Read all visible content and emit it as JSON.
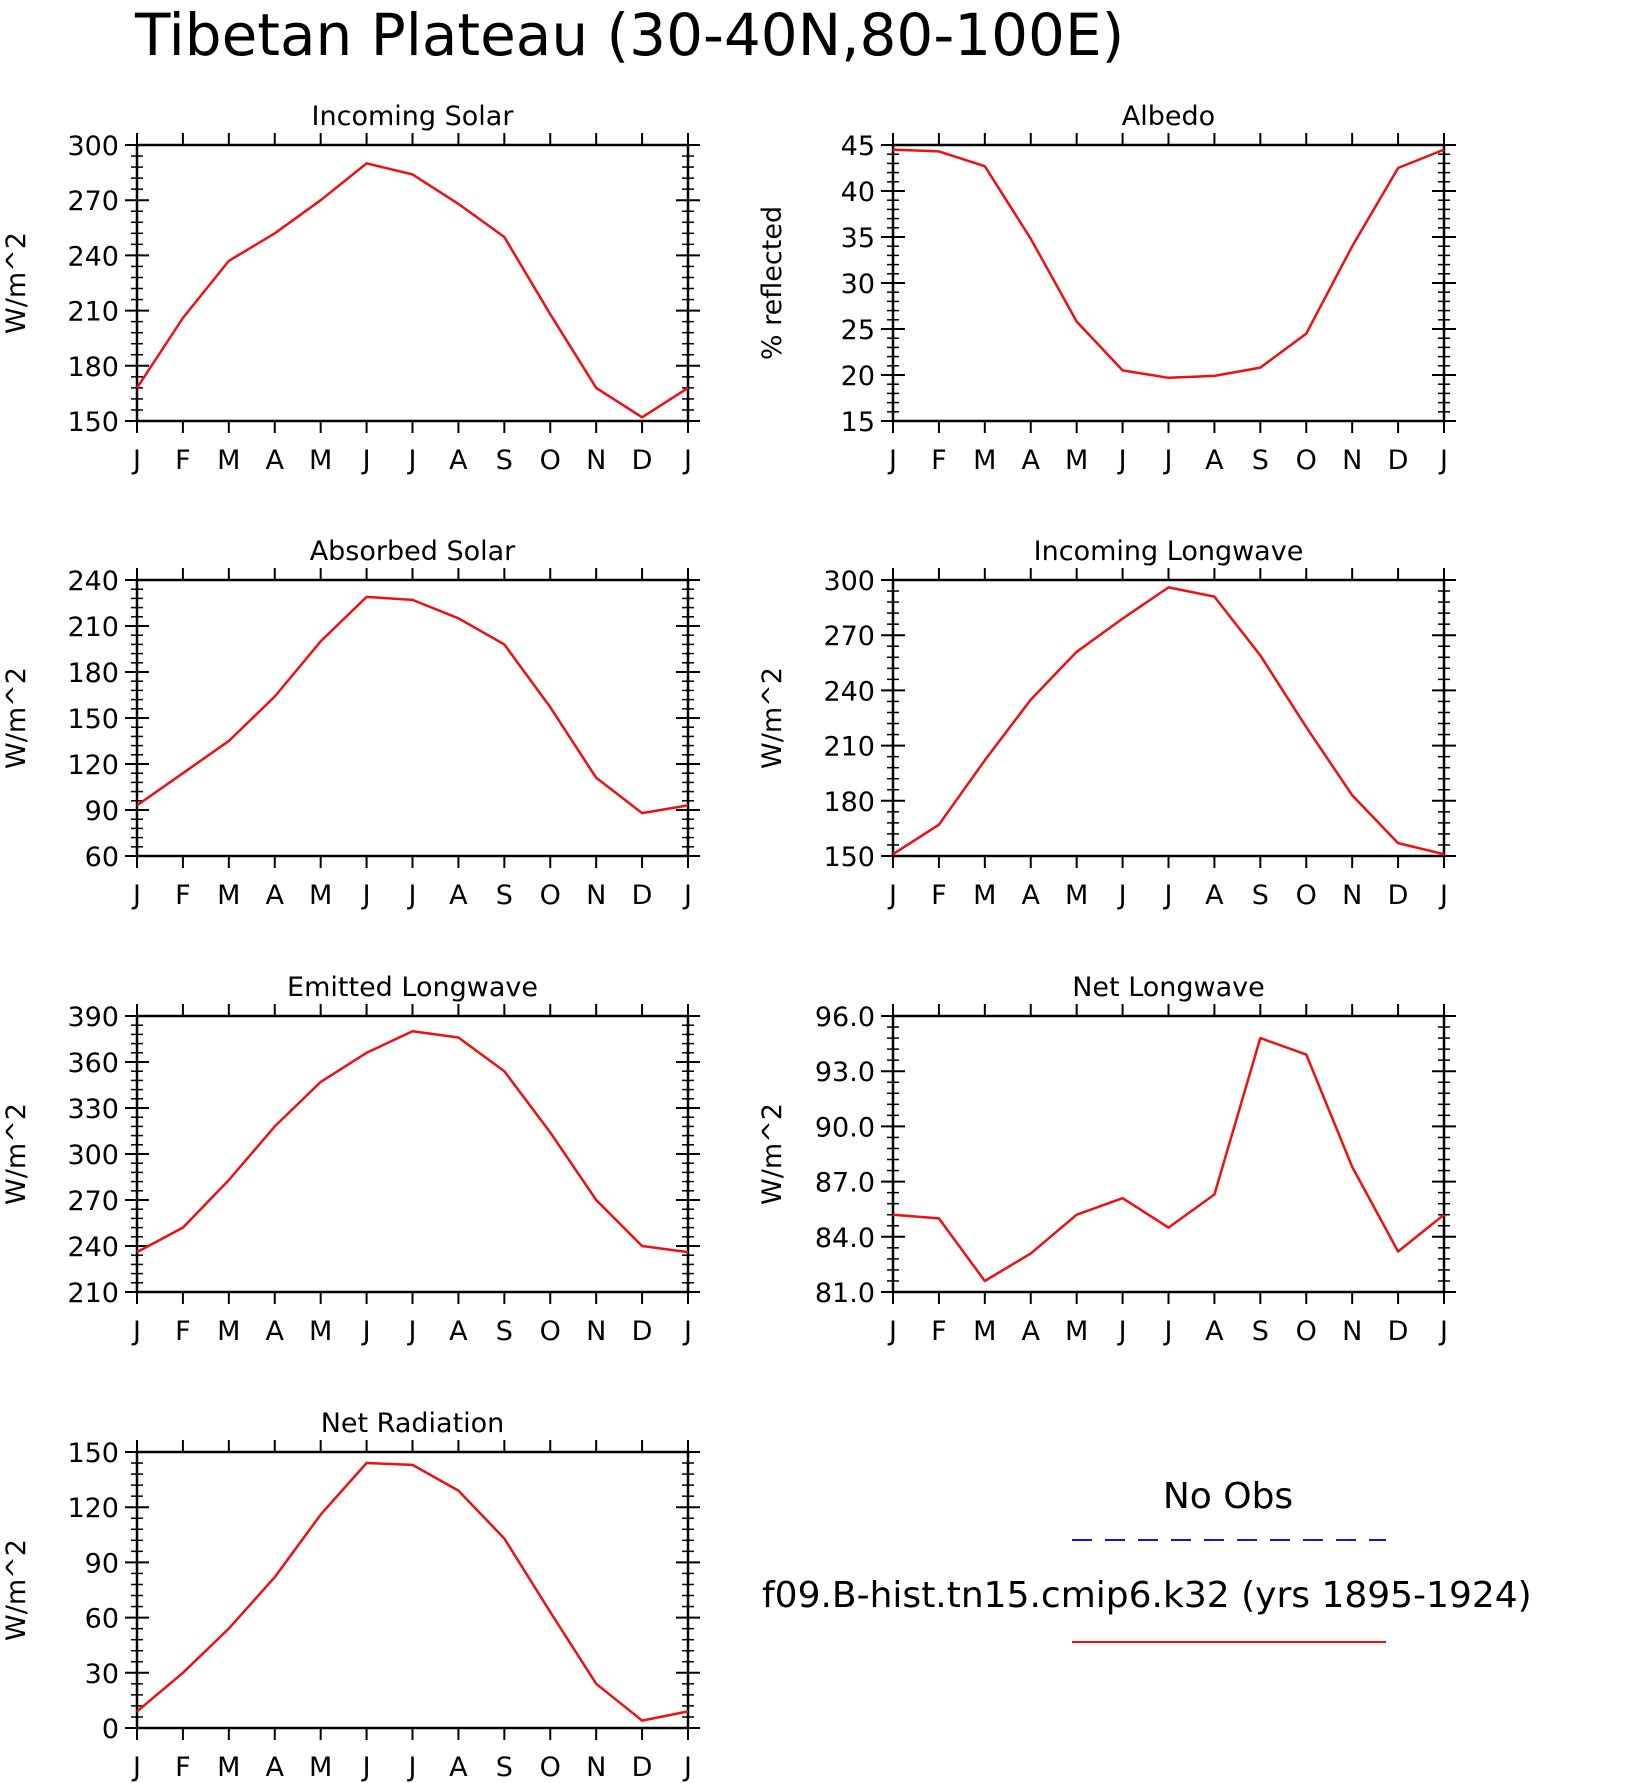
{
  "title": "Tibetan Plateau (30-40N,80-100E)",
  "months": [
    "J",
    "F",
    "M",
    "A",
    "M",
    "J",
    "J",
    "A",
    "S",
    "O",
    "N",
    "D",
    "J"
  ],
  "legend": {
    "obs_label": "No Obs",
    "obs_color": "#1010ee",
    "model_label": "f09.B-hist.tn15.cmip6.k32 (yrs 1895-1924)",
    "model_color": "#ee1010"
  },
  "chart_data": [
    {
      "type": "line",
      "title": "Incoming Solar",
      "ylabel": "W/m^2",
      "ylim": [
        150,
        300
      ],
      "yticks": [
        "150",
        "180",
        "210",
        "240",
        "270",
        "300"
      ],
      "series": [
        {
          "values": [
            168,
            206,
            237,
            252,
            270,
            290,
            284,
            268,
            250,
            208,
            168,
            152,
            168
          ]
        }
      ]
    },
    {
      "type": "line",
      "title": "Albedo",
      "ylabel": "% reflected",
      "ylim": [
        15,
        45
      ],
      "yticks": [
        "15",
        "20",
        "25",
        "30",
        "35",
        "40",
        "45"
      ],
      "series": [
        {
          "values": [
            44.5,
            44.3,
            42.7,
            34.8,
            25.8,
            20.5,
            19.7,
            19.9,
            20.8,
            24.5,
            34.0,
            42.5,
            44.5
          ]
        }
      ]
    },
    {
      "type": "line",
      "title": "Absorbed Solar",
      "ylabel": "W/m^2",
      "ylim": [
        60,
        240
      ],
      "yticks": [
        "60",
        "90",
        "120",
        "150",
        "180",
        "210",
        "240"
      ],
      "series": [
        {
          "values": [
            93,
            114,
            135,
            164,
            200,
            229,
            227,
            215,
            198,
            157,
            111,
            88,
            93
          ]
        }
      ]
    },
    {
      "type": "line",
      "title": "Incoming Longwave",
      "ylabel": "W/m^2",
      "ylim": [
        150,
        300
      ],
      "yticks": [
        "150",
        "180",
        "210",
        "240",
        "270",
        "300"
      ],
      "series": [
        {
          "values": [
            151,
            167,
            202,
            235,
            261,
            279,
            296,
            291,
            259,
            220,
            183,
            157,
            151
          ]
        }
      ]
    },
    {
      "type": "line",
      "title": "Emitted Longwave",
      "ylabel": "W/m^2",
      "ylim": [
        210,
        390
      ],
      "yticks": [
        "210",
        "240",
        "270",
        "300",
        "330",
        "360",
        "390"
      ],
      "series": [
        {
          "values": [
            236,
            252,
            283,
            318,
            347,
            366,
            380,
            376,
            354,
            314,
            270,
            240,
            236
          ]
        }
      ]
    },
    {
      "type": "line",
      "title": "Net Longwave",
      "ylabel": "W/m^2",
      "ylim": [
        81.0,
        96.0
      ],
      "yticks": [
        "81.0",
        "84.0",
        "87.0",
        "90.0",
        "93.0",
        "96.0"
      ],
      "series": [
        {
          "values": [
            85.2,
            85.0,
            81.6,
            83.1,
            85.2,
            86.1,
            84.5,
            86.3,
            94.8,
            93.9,
            87.8,
            83.2,
            85.2
          ]
        }
      ]
    },
    {
      "type": "line",
      "title": "Net Radiation",
      "ylabel": "W/m^2",
      "ylim": [
        0,
        150
      ],
      "yticks": [
        "0",
        "30",
        "60",
        "90",
        "120",
        "150"
      ],
      "series": [
        {
          "values": [
            9,
            30,
            54,
            82,
            116,
            144,
            143,
            129,
            103,
            63,
            24,
            4,
            9
          ]
        }
      ]
    }
  ]
}
